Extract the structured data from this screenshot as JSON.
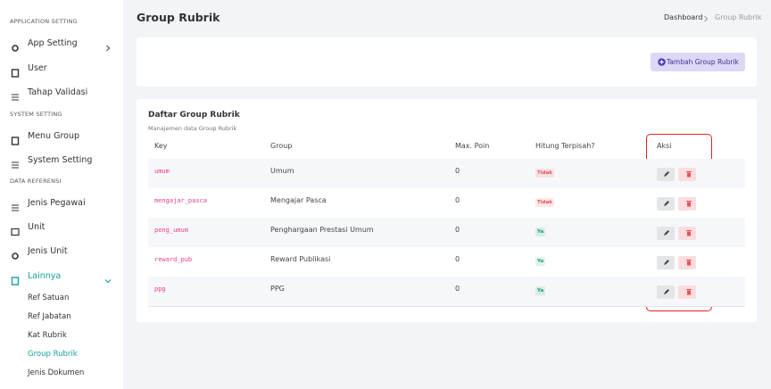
{
  "sidebar": {
    "sections": [
      {
        "label": "APPLICATION SETTING",
        "items": [
          "App Setting",
          "User",
          "Tahap Validasi"
        ]
      },
      {
        "label": "SYSTEM SETTING",
        "items": [
          "Menu Group",
          "System Setting"
        ]
      },
      {
        "label": "DATA REFERENSI",
        "items": [
          "Jenis Pegawai",
          "Unit",
          "Jenis Unit",
          "Lainnya"
        ]
      }
    ],
    "submenu": [
      "Ref Satuan",
      "Ref Jabatan",
      "Kat Rubrik",
      "Group Rubrik",
      "Jenis Dokumen"
    ]
  },
  "header": {
    "title": "Group Rubrik",
    "breadcrumb": [
      "Dashboard",
      "Group Rubrik"
    ]
  },
  "action_button": "Tambah Group Rubrik",
  "card": {
    "title": "Daftar Group Rubrik",
    "subtitle": "Manajemen data Group Rubrik"
  },
  "table": {
    "columns": [
      "Key",
      "Group",
      "Max. Poin",
      "Hitung Terpisah?",
      "Aksi"
    ],
    "rows": [
      {
        "key": "umum",
        "group": "Umum",
        "max_poin": 0,
        "hitung": {
          "label": "Tidak",
          "color": "#e8505b"
        }
      },
      {
        "key": "mengajar_pasca",
        "group": "Mengajar Pasca",
        "max_poin": 0,
        "hitung": {
          "label": "Tidak",
          "color": "#e8505b"
        }
      },
      {
        "key": "peng_umum",
        "group": "Penghargaan Prestasi Umum",
        "max_poin": 0,
        "hitung": {
          "label": "Ya",
          "color": "#1aa56a"
        }
      },
      {
        "key": "reward_pub",
        "group": "Reward Publikasi",
        "max_poin": 0,
        "hitung": {
          "label": "Ya",
          "color": "#1aa56a"
        }
      },
      {
        "key": "ppg",
        "group": "PPG",
        "max_poin": 0,
        "hitung": {
          "label": "Ya",
          "color": "#1aa56a"
        }
      }
    ]
  }
}
